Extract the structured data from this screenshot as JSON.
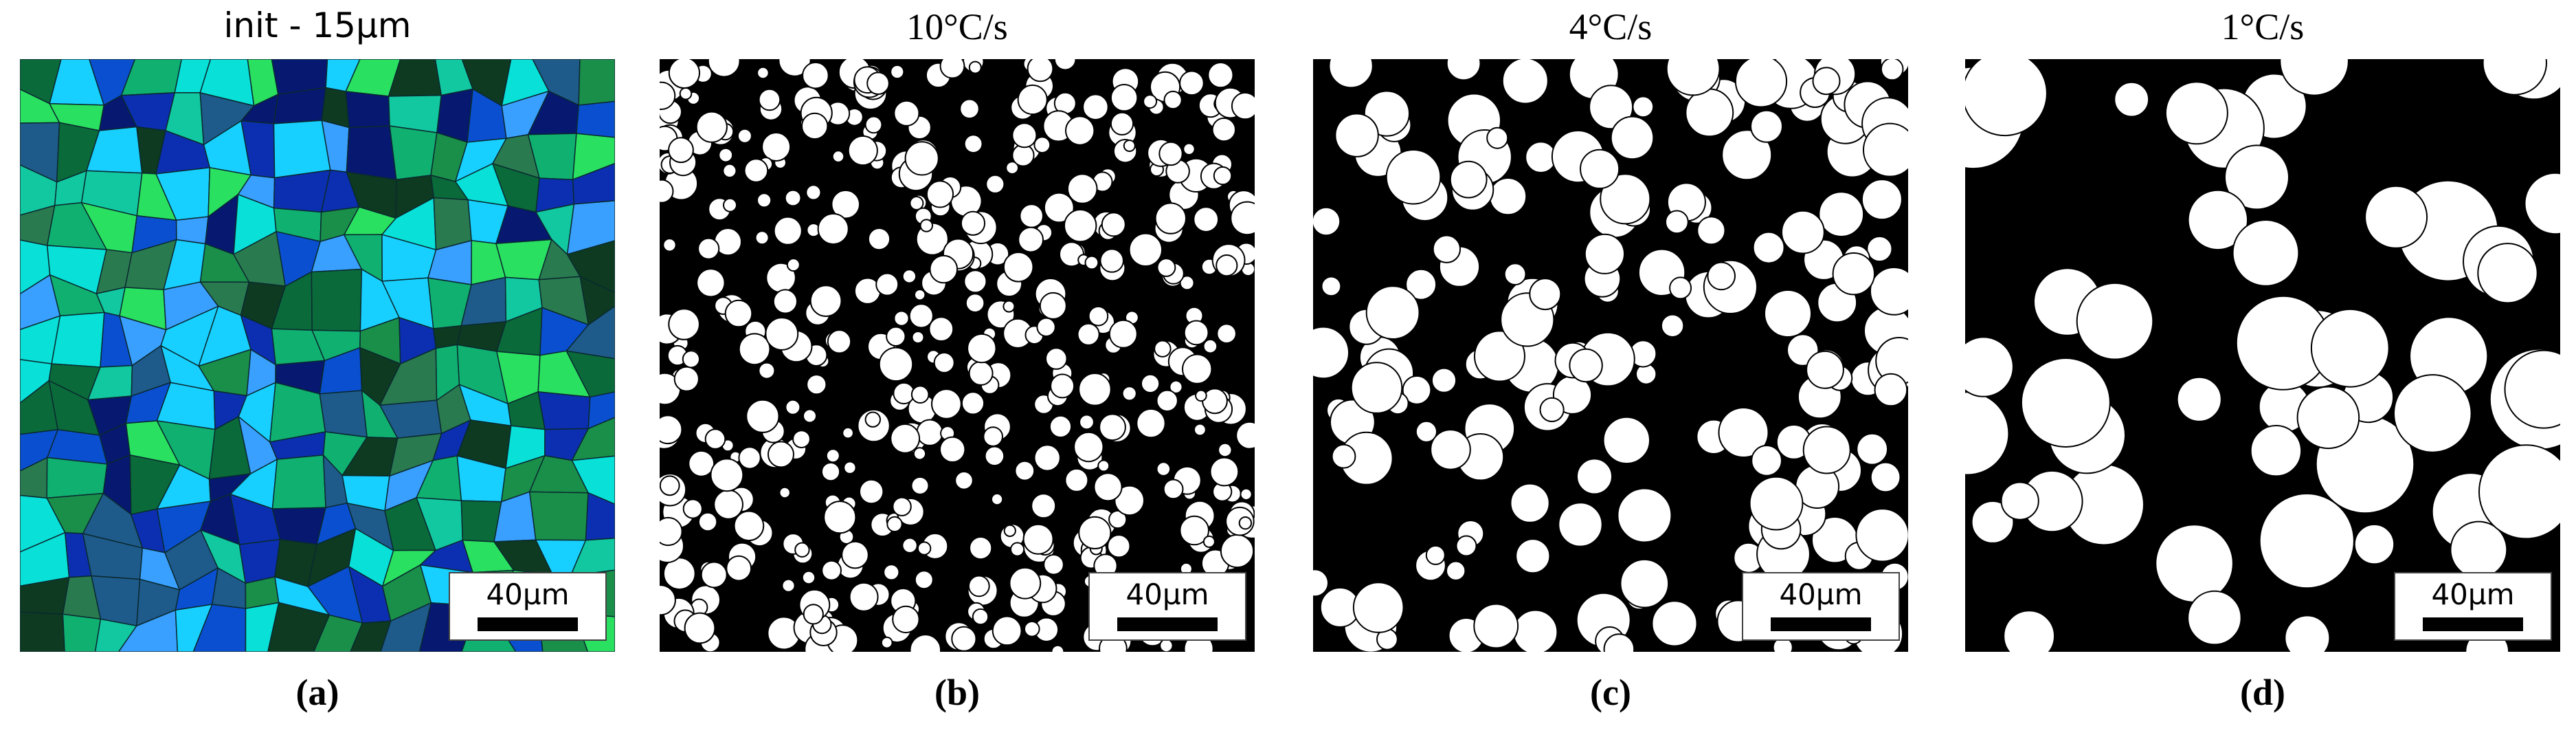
{
  "panels": [
    {
      "title": "init - 15µm",
      "scale_bar": "40µm",
      "label": "(a)"
    },
    {
      "title": "10°C/s",
      "scale_bar": "40µm",
      "label": "(b)"
    },
    {
      "title": "4°C/s",
      "scale_bar": "40µm",
      "label": "(c)"
    },
    {
      "title": "1°C/s",
      "scale_bar": "40µm",
      "label": "(d)"
    }
  ]
}
